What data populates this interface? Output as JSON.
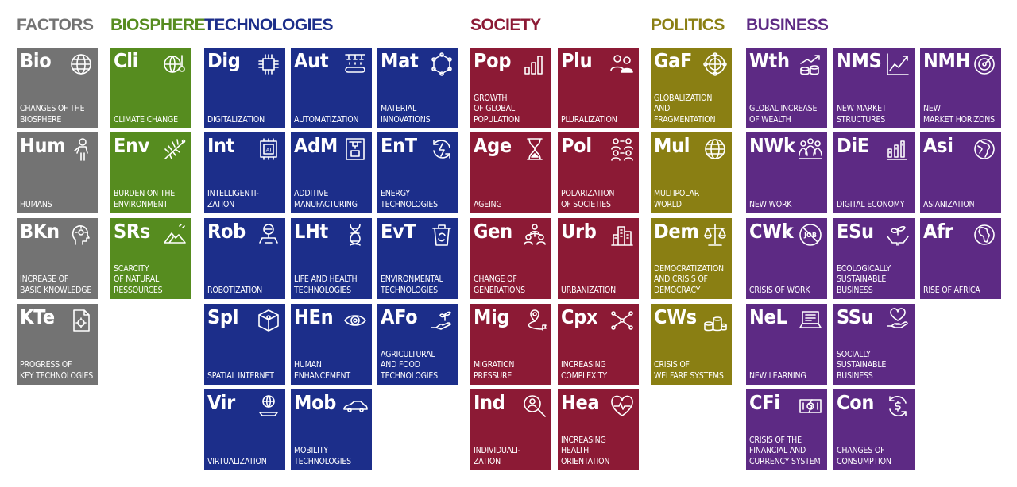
{
  "colors": {
    "factors": "#737373",
    "biosphere": "#568c1f",
    "technologies": "#1c2e8a",
    "society": "#8c1a35",
    "politics": "#8a7f13",
    "business": "#5d2a84"
  },
  "categories": [
    {
      "name": "FACTORS",
      "key": "factors"
    },
    {
      "name": "BIOSPHERE",
      "key": "biosphere"
    },
    {
      "name": "TECHNOLOGIES",
      "key": "technologies"
    },
    {
      "name": "SOCIETY",
      "key": "society"
    },
    {
      "name": "POLITICS",
      "key": "politics"
    },
    {
      "name": "BUSINESS",
      "key": "business"
    }
  ],
  "tiles": [
    {
      "code": "Bio",
      "label": "CHANGES OF THE\nBIOSPHERE",
      "icon": "globe-icon",
      "cat": "factors"
    },
    {
      "code": "Hum",
      "label": "HUMANS",
      "icon": "human-anatomy-icon",
      "cat": "factors"
    },
    {
      "code": "BKn",
      "label": "INCREASE OF\nBASIC KNOWLEDGE",
      "icon": "head-idea-icon",
      "cat": "factors"
    },
    {
      "code": "KTe",
      "label": "PROGRESS OF\nKEY TECHNOLOGIES",
      "icon": "document-gear-icon",
      "cat": "factors"
    },
    {
      "code": "Cli",
      "label": "CLIMATE CHANGE",
      "icon": "globe-thermometer-icon",
      "cat": "biosphere"
    },
    {
      "code": "Env",
      "label": "BURDEN ON THE\nENVIRONMENT",
      "icon": "fishbone-icon",
      "cat": "biosphere"
    },
    {
      "code": "SRs",
      "label": "SCARCITY\nOF NATURAL\nRESSOURCES",
      "icon": "mountain-icon",
      "cat": "biosphere"
    },
    {
      "code": "Dig",
      "label": "DIGITALIZATION",
      "icon": "chip-icon",
      "cat": "technologies"
    },
    {
      "code": "Int",
      "label": "INTELLIGENTI-\nZATION",
      "icon": "ai-chip-icon",
      "cat": "technologies"
    },
    {
      "code": "Rob",
      "label": "ROBOTIZATION",
      "icon": "robot-icon",
      "cat": "technologies"
    },
    {
      "code": "Spl",
      "label": "SPATIAL INTERNET",
      "icon": "cube-person-icon",
      "cat": "technologies"
    },
    {
      "code": "Vir",
      "label": "VIRTUALIZATION",
      "icon": "globe-platform-icon",
      "cat": "technologies"
    },
    {
      "code": "Aut",
      "label": "AUTOMATIZATION",
      "icon": "assembly-line-icon",
      "cat": "technologies"
    },
    {
      "code": "AdM",
      "label": "ADDITIVE\nMANUFACTURING",
      "icon": "3d-printer-icon",
      "cat": "technologies"
    },
    {
      "code": "LHt",
      "label": "LIFE AND HEALTH\nTECHNOLOGIES",
      "icon": "dna-icon",
      "cat": "technologies"
    },
    {
      "code": "HEn",
      "label": "HUMAN\nENHANCEMENT",
      "icon": "eye-icon",
      "cat": "technologies"
    },
    {
      "code": "Mob",
      "label": "MOBILITY\nTECHNOLOGIES",
      "icon": "car-icon",
      "cat": "technologies"
    },
    {
      "code": "Mat",
      "label": "MATERIAL\nINNOVATIONS",
      "icon": "molecule-icon",
      "cat": "technologies"
    },
    {
      "code": "EnT",
      "label": "ENERGY\nTECHNOLOGIES",
      "icon": "energy-cycle-icon",
      "cat": "technologies"
    },
    {
      "code": "EvT",
      "label": "ENVIRONMENTAL\nTECHNOLOGIES",
      "icon": "recycle-bin-icon",
      "cat": "technologies"
    },
    {
      "code": "AFo",
      "label": "AGRICULTURAL\nAND FOOD\nTECHNOLOGIES",
      "icon": "hand-sprout-icon",
      "cat": "technologies"
    },
    {
      "code": "Pop",
      "label": "GROWTH\nOF GLOBAL\nPOPULATION",
      "icon": "bar-chart-icon",
      "cat": "society"
    },
    {
      "code": "Age",
      "label": "AGEING",
      "icon": "hourglass-icon",
      "cat": "society"
    },
    {
      "code": "Gen",
      "label": "CHANGE OF\nGENERATIONS",
      "icon": "generations-icon",
      "cat": "society"
    },
    {
      "code": "Mig",
      "label": "MIGRATION\nPRESSURE",
      "icon": "migration-path-icon",
      "cat": "society"
    },
    {
      "code": "Ind",
      "label": "INDIVIDUALI-\nZATION",
      "icon": "magnifier-person-icon",
      "cat": "society"
    },
    {
      "code": "Plu",
      "label": "PLURALIZATION",
      "icon": "people-icon",
      "cat": "society"
    },
    {
      "code": "Pol",
      "label": "POLARIZATION\nOF SOCIETIES",
      "icon": "polarization-icon",
      "cat": "society"
    },
    {
      "code": "Urb",
      "label": "URBANIZATION",
      "icon": "city-icon",
      "cat": "society"
    },
    {
      "code": "Cpx",
      "label": "INCREASING\nCOMPLEXITY",
      "icon": "network-icon",
      "cat": "society"
    },
    {
      "code": "Hea",
      "label": "INCREASING\nHEALTH\nORIENTATION",
      "icon": "heart-pulse-icon",
      "cat": "society"
    },
    {
      "code": "GaF",
      "label": "GLOBALIZATION\nAND\nFRAGMENTATION",
      "icon": "globe-network-icon",
      "cat": "politics"
    },
    {
      "code": "Mul",
      "label": "MULTIPOLAR\nWORLD",
      "icon": "globe-icon",
      "cat": "politics"
    },
    {
      "code": "Dem",
      "label": "DEMOCRATIZATION\nAND CRISIS OF\nDEMOCRACY",
      "icon": "scales-icon",
      "cat": "politics"
    },
    {
      "code": "CWs",
      "label": "CRISIS OF\nWELFARE SYSTEMS",
      "icon": "coins-icon",
      "cat": "politics"
    },
    {
      "code": "Wth",
      "label": "GLOBAL INCREASE\nOF WEALTH",
      "icon": "coins-growth-icon",
      "cat": "business"
    },
    {
      "code": "NWk",
      "label": "NEW WORK",
      "icon": "team-icon",
      "cat": "business"
    },
    {
      "code": "CWk",
      "label": "CRISIS OF WORK",
      "icon": "no-job-icon",
      "cat": "business"
    },
    {
      "code": "NeL",
      "label": "NEW LEARNING",
      "icon": "laptop-learning-icon",
      "cat": "business"
    },
    {
      "code": "CFi",
      "label": "CRISIS OF THE\nFINANCIAL AND\nCURRENCY SYSTEM",
      "icon": "broken-banknote-icon",
      "cat": "business"
    },
    {
      "code": "NMS",
      "label": "NEW MARKET\nSTRUCTURES",
      "icon": "line-chart-icon",
      "cat": "business"
    },
    {
      "code": "DiE",
      "label": "DIGITAL ECONOMY",
      "icon": "digital-bars-icon",
      "cat": "business"
    },
    {
      "code": "ESu",
      "label": "ECOLOGICALLY\nSUSTAINABLE\nBUSINESS",
      "icon": "hands-leaf-icon",
      "cat": "business"
    },
    {
      "code": "SSu",
      "label": "SOCIALLY\nSUSTAINABLE\nBUSINESS",
      "icon": "hand-heart-icon",
      "cat": "business"
    },
    {
      "code": "Con",
      "label": "CHANGES OF\nCONSUMPTION",
      "icon": "money-cycle-icon",
      "cat": "business"
    },
    {
      "code": "NMH",
      "label": "NEW\nMARKET HORIZONS",
      "icon": "target-icon",
      "cat": "business"
    },
    {
      "code": "Asi",
      "label": "ASIANIZATION",
      "icon": "globe-asia-icon",
      "cat": "business"
    },
    {
      "code": "Afr",
      "label": "RISE OF AFRICA",
      "icon": "globe-africa-icon",
      "cat": "business"
    }
  ]
}
